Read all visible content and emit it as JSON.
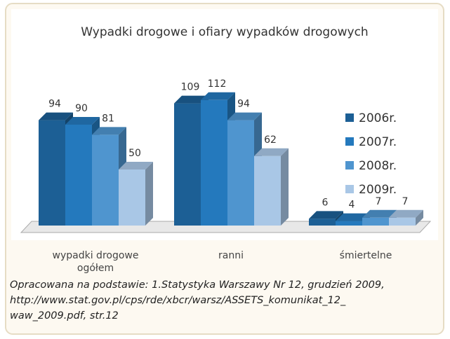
{
  "chart_data": {
    "type": "bar3d",
    "title": "Wypadki drogowe i ofiary wypadków drogowych",
    "categories": [
      "wypadki drogowe ogółem",
      "ranni",
      "śmiertelne"
    ],
    "series": [
      {
        "name": "2006r.",
        "color": "#1c5f95",
        "values": [
          94,
          109,
          6
        ]
      },
      {
        "name": "2007r.",
        "color": "#2479bd",
        "values": [
          90,
          112,
          4
        ]
      },
      {
        "name": "2008r.",
        "color": "#4f95cf",
        "values": [
          81,
          94,
          7
        ]
      },
      {
        "name": "2009r.",
        "color": "#a9c7e6",
        "values": [
          50,
          62,
          7
        ]
      }
    ],
    "legend": "right"
  },
  "caption": [
    "Opracowana na podstawie: 1.Statystyka Warszawy Nr 12, grudzień 2009,",
    "http://www.stat.gov.pl/cps/rde/xbcr/warsz/ASSETS_komunikat_12_",
    "waw_2009.pdf, str.12"
  ]
}
